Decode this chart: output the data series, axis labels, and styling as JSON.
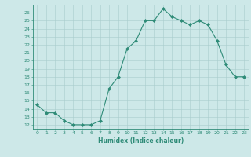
{
  "x": [
    0,
    1,
    2,
    3,
    4,
    5,
    6,
    7,
    8,
    9,
    10,
    11,
    12,
    13,
    14,
    15,
    16,
    17,
    18,
    19,
    20,
    21,
    22,
    23
  ],
  "y": [
    14.5,
    13.5,
    13.5,
    12.5,
    12.0,
    12.0,
    12.0,
    12.5,
    16.5,
    18.0,
    21.5,
    22.5,
    25.0,
    25.0,
    26.5,
    25.5,
    25.0,
    24.5,
    25.0,
    24.5,
    22.5,
    19.5,
    18.0,
    18.0
  ],
  "xlabel": "Humidex (Indice chaleur)",
  "ylim_min": 11.5,
  "ylim_max": 27.0,
  "xlim_min": -0.5,
  "xlim_max": 23.5,
  "yticks": [
    12,
    13,
    14,
    15,
    16,
    17,
    18,
    19,
    20,
    21,
    22,
    23,
    24,
    25,
    26
  ],
  "xticks": [
    0,
    1,
    2,
    3,
    4,
    5,
    6,
    7,
    8,
    9,
    10,
    11,
    12,
    13,
    14,
    15,
    16,
    17,
    18,
    19,
    20,
    21,
    22,
    23
  ],
  "line_color": "#2e8b77",
  "marker_color": "#2e8b77",
  "bg_color": "#cde8e8",
  "grid_color": "#a8cccc",
  "axis_color": "#2e8b77",
  "tick_color": "#2e8b77",
  "label_color": "#2e8b77",
  "tick_fontsize": 4.5,
  "xlabel_fontsize": 5.5
}
